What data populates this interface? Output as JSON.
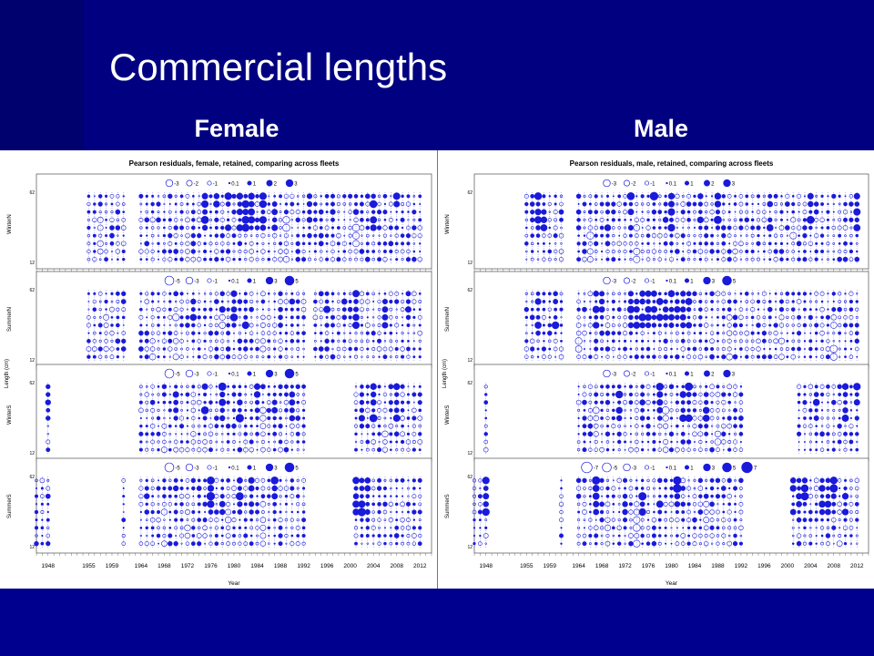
{
  "slide": {
    "title": "Commercial lengths",
    "subtitle_left": "Female",
    "subtitle_right": "Male",
    "colors": {
      "background": "#000080",
      "bubble": "#1a1adb",
      "text": "#ffffff"
    }
  },
  "chart_data": [
    {
      "type": "scatter",
      "subtype": "bubble",
      "title": "Pearson residuals, female, retained, comparing across fleets",
      "xlabel": "Year",
      "ylabel": "Length (cm)",
      "xlim": [
        1946,
        2014
      ],
      "xticks": [
        1948,
        1955,
        1959,
        1964,
        1968,
        1972,
        1976,
        1980,
        1984,
        1988,
        1992,
        1996,
        2000,
        2004,
        2008,
        2012
      ],
      "yticks": [
        12,
        62
      ],
      "fill_meaning": "filled = positive residual, open = negative residual",
      "panels": [
        {
          "fleet": "WinterN",
          "legend": [
            "-3",
            "-2",
            "-1",
            "0.1",
            "1",
            "2",
            "3"
          ],
          "year_ranges": [
            [
              1955,
              1961
            ],
            [
              1964,
              2012
            ]
          ],
          "strong_positive_years": [
            1975,
            1977,
            1979,
            1981,
            1982,
            1983,
            1985,
            1987,
            1993,
            1997,
            2001,
            2004,
            2008
          ],
          "strong_negative_years": [
            1957,
            1966,
            1972,
            1989,
            2001
          ]
        },
        {
          "fleet": "SummerN",
          "legend": [
            "-5",
            "-3",
            "-1",
            "0.1",
            "1",
            "3",
            "5"
          ],
          "year_ranges": [
            [
              1955,
              1961
            ],
            [
              1964,
              1992
            ],
            [
              1994,
              2012
            ]
          ],
          "strong_positive_years": [
            1973,
            1978,
            1980,
            1982,
            1990,
            1996,
            1999,
            2001,
            2006,
            2010
          ],
          "strong_negative_years": [
            1958,
            1966,
            1970,
            1978,
            1985
          ]
        },
        {
          "fleet": "WinterS",
          "legend": [
            "-5",
            "-3",
            "-1",
            "0.1",
            "1",
            "3",
            "5"
          ],
          "year_ranges": [
            [
              1948,
              1948
            ],
            [
              1964,
              1992
            ],
            [
              2001,
              2012
            ]
          ],
          "strong_positive_years": [
            1948,
            1970,
            1975,
            1978,
            1980,
            1981,
            1984,
            1987,
            1990,
            2002,
            2004,
            2008
          ],
          "strong_negative_years": [
            1968,
            1973,
            1985,
            2006
          ]
        },
        {
          "fleet": "SummerS",
          "legend": [
            "-5",
            "-3",
            "-1",
            "0.1",
            "1",
            "3",
            "5"
          ],
          "year_ranges": [
            [
              1946,
              1948
            ],
            [
              1961,
              1961
            ],
            [
              1964,
              1992
            ],
            [
              2001,
              2012
            ]
          ],
          "strong_positive_years": [
            1965,
            1970,
            1974,
            1976,
            1978,
            1981,
            1983,
            1987,
            2001,
            2002,
            2003,
            2005
          ],
          "strong_negative_years": [
            1968,
            1972,
            1979,
            1985
          ]
        }
      ]
    },
    {
      "type": "scatter",
      "subtype": "bubble",
      "title": "Pearson residuals, male, retained, comparing across fleets",
      "xlabel": "Year",
      "ylabel": "Length (cm)",
      "xlim": [
        1946,
        2014
      ],
      "xticks": [
        1948,
        1955,
        1959,
        1964,
        1968,
        1972,
        1976,
        1980,
        1984,
        1988,
        1992,
        1996,
        2000,
        2004,
        2008,
        2012
      ],
      "yticks": [
        12,
        62
      ],
      "fill_meaning": "filled = positive residual, open = negative residual",
      "panels": [
        {
          "fleet": "WinterN",
          "legend": [
            "-3",
            "-2",
            "-1",
            "0.1",
            "1",
            "2",
            "3"
          ],
          "year_ranges": [
            [
              1955,
              1961
            ],
            [
              1964,
              2012
            ]
          ],
          "strong_positive_years": [
            1957,
            1958,
            1969,
            1973,
            1977,
            1979,
            1980,
            1985,
            1988,
            1997,
            2004,
            2012
          ],
          "strong_negative_years": [
            1966,
            1974,
            1991,
            2001
          ]
        },
        {
          "fleet": "SummerN",
          "legend": [
            "-3",
            "-2",
            "-1",
            "0.1",
            "1",
            "3",
            "5"
          ],
          "year_ranges": [
            [
              1955,
              1961
            ],
            [
              1964,
              2012
            ]
          ],
          "strong_positive_years": [
            1957,
            1960,
            1967,
            1968,
            1973,
            1974,
            1975,
            1976,
            1977,
            1978,
            1979,
            1980,
            1981,
            1982,
            1983
          ],
          "strong_negative_years": [
            1964,
            1990,
            1999,
            2008
          ]
        },
        {
          "fleet": "WinterS",
          "legend": [
            "-3",
            "-2",
            "-1",
            "0.1",
            "1",
            "2",
            "3"
          ],
          "year_ranges": [
            [
              1948,
              1948
            ],
            [
              1964,
              1992
            ],
            [
              2002,
              2012
            ]
          ],
          "strong_positive_years": [
            1971,
            1975,
            1978,
            1982,
            1983,
            1986,
            2005,
            2010,
            2012
          ],
          "strong_negative_years": [
            1967,
            1974,
            1979,
            1988
          ]
        },
        {
          "fleet": "SummerS",
          "legend": [
            "-7",
            "-5",
            "-3",
            "-1",
            "0.1",
            "1",
            "3",
            "5",
            "7"
          ],
          "year_ranges": [
            [
              1946,
              1948
            ],
            [
              1961,
              1961
            ],
            [
              1964,
              1992
            ],
            [
              2001,
              2012
            ]
          ],
          "strong_positive_years": [
            1948,
            1967,
            1972,
            1975,
            1978,
            1981,
            2001,
            2002,
            2003,
            2006,
            2007,
            2008,
            2010
          ],
          "strong_negative_years": [
            1969,
            1974,
            1986,
            2009
          ]
        }
      ]
    }
  ]
}
